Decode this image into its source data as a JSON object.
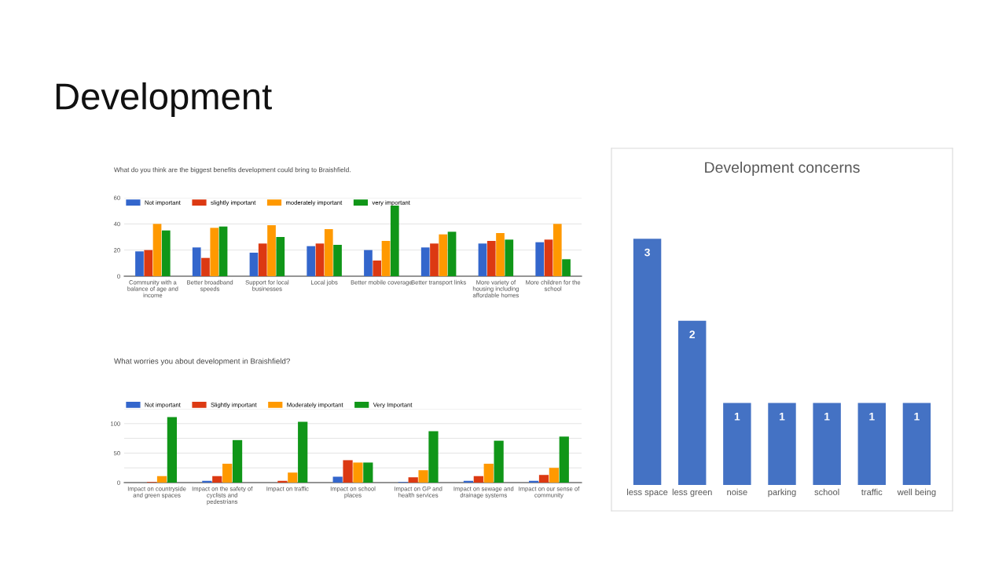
{
  "chart_data": [
    {
      "type": "bar",
      "title": "What do you think are the biggest benefits development could bring to Braishfield.",
      "annotations": [
        "Development"
      ],
      "categories": [
        "Community with a\nbalance of age and\nincome",
        "Better broadband\nspeeds",
        "Support for local\nbusinesses",
        "Local jobs",
        "Better mobile coverage",
        "Better transport links",
        "More variety of\nhousing including\naffordable homes",
        "More children for the\nschool"
      ],
      "series": [
        {
          "name": "Not important",
          "color": "#3366cc",
          "values": [
            19,
            22,
            18,
            23,
            20,
            22,
            25,
            26
          ]
        },
        {
          "name": "slightly important",
          "color": "#dc3912",
          "values": [
            20,
            14,
            25,
            25,
            12,
            25,
            27,
            28
          ]
        },
        {
          "name": "moderately important",
          "color": "#ff9900",
          "values": [
            40,
            37,
            39,
            36,
            27,
            32,
            33,
            40
          ]
        },
        {
          "name": "very important",
          "color": "#109618",
          "values": [
            35,
            38,
            30,
            24,
            54,
            34,
            28,
            13
          ]
        }
      ],
      "ylim": [
        0,
        60
      ],
      "yticks": [
        0,
        20,
        40,
        60
      ],
      "grid": "y",
      "legend": "top left"
    },
    {
      "type": "bar",
      "title": "What worries you about development in Braishfield?",
      "categories": [
        "Impact on countryside\nand green spaces",
        "Impact on the safety of\ncyclists and\npedestrians",
        "Impact on traffic",
        "Impact on school\nplaces",
        "Impact on GP and\nhealth services",
        "Impact on sewage and\ndrainage systems",
        "Impact on our sense of\ncommunity"
      ],
      "series": [
        {
          "name": "Not important",
          "color": "#3366cc",
          "values": [
            0,
            3,
            0,
            10,
            1,
            3,
            3
          ]
        },
        {
          "name": "Slightly important",
          "color": "#dc3912",
          "values": [
            1,
            11,
            3,
            38,
            9,
            11,
            13
          ]
        },
        {
          "name": "Moderately important",
          "color": "#ff9900",
          "values": [
            11,
            32,
            17,
            34,
            21,
            32,
            25
          ]
        },
        {
          "name": "Very Important",
          "color": "#109618",
          "values": [
            111,
            72,
            103,
            34,
            87,
            71,
            78
          ]
        }
      ],
      "ylim": [
        0,
        125
      ],
      "yticks": [
        0,
        {
          "value": 25,
          "label": null
        },
        50,
        {
          "value": 75,
          "label": null
        },
        100,
        {
          "value": 125,
          "label": null
        }
      ],
      "grid": "y",
      "legend": "top left"
    },
    {
      "type": "bar",
      "title": "Development concerns",
      "data_labels": true,
      "categories": [
        "less space",
        "less green",
        "noise",
        "parking",
        "school",
        "traffic",
        "well being"
      ],
      "values": [
        3,
        2,
        1,
        1,
        1,
        1,
        1
      ],
      "color": "#4472c4"
    }
  ]
}
